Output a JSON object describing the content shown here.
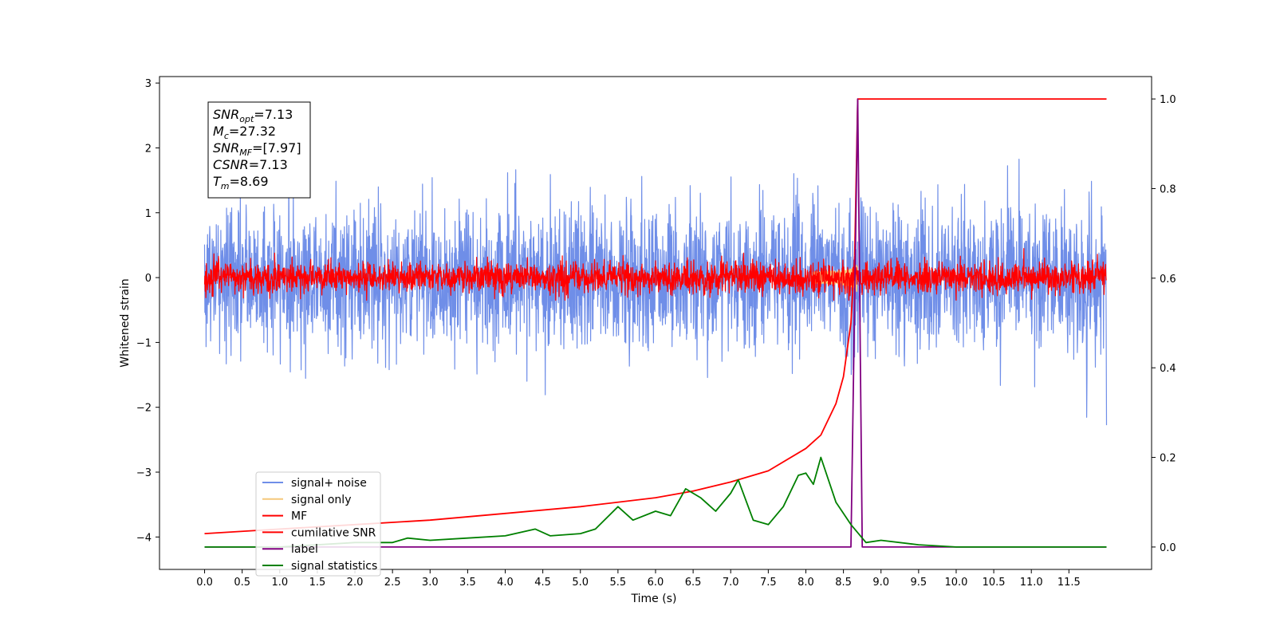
{
  "chart_data": {
    "type": "line",
    "xlabel": "Time (s)",
    "ylabel": "Whitened strain",
    "xlim": [
      -0.6,
      12.6
    ],
    "ylim": [
      -4.5,
      3.1
    ],
    "ylim_right": [
      -0.05,
      1.05
    ],
    "x_ticks": [
      "0.0",
      "0.5",
      "1.0",
      "1.5",
      "2.0",
      "2.5",
      "3.0",
      "3.5",
      "4.0",
      "4.5",
      "5.0",
      "5.5",
      "6.0",
      "6.5",
      "7.0",
      "7.5",
      "8.0",
      "8.5",
      "9.0",
      "9.5",
      "10.0",
      "10.5",
      "11.0",
      "11.5"
    ],
    "y_ticks": [
      "3",
      "2",
      "1",
      "0",
      "−1",
      "−2",
      "−3",
      "−4"
    ],
    "y_ticks_right": [
      "1.0",
      "0.8",
      "0.6",
      "0.4",
      "0.2",
      "0.0"
    ],
    "grid": false,
    "legend_placement": "lower-left",
    "info_box": [
      {
        "label": "SNR",
        "sub": "opt",
        "value": "=7.13"
      },
      {
        "label": "M",
        "sub": "c",
        "value": "=27.32"
      },
      {
        "label": "SNR",
        "sub": "MF",
        "value": "=[7.97]"
      },
      {
        "label": "CSNR",
        "sub": "",
        "value": "=7.13"
      },
      {
        "label": "T",
        "sub": "m",
        "value": "=8.69"
      }
    ],
    "series": [
      {
        "name": "signal+ noise",
        "color": "#6f8ee8",
        "axis": "left",
        "kind": "noise",
        "sigma": 0.55,
        "x_range": [
          0,
          12
        ]
      },
      {
        "name": "signal only",
        "color": "#f5c87a",
        "axis": "left",
        "kind": "chirp",
        "merger": 8.69,
        "peak": 0.35
      },
      {
        "name": "MF",
        "color": "#ff0000",
        "axis": "left",
        "kind": "noise",
        "sigma": 0.12,
        "x_range": [
          0,
          12
        ]
      },
      {
        "name": "cumilative SNR",
        "color": "#ff0000",
        "axis": "right",
        "x": [
          0.0,
          1.0,
          2.0,
          3.0,
          4.0,
          5.0,
          6.0,
          6.5,
          7.0,
          7.5,
          8.0,
          8.2,
          8.4,
          8.5,
          8.6,
          8.65,
          8.69,
          9.0,
          10.0,
          11.0,
          12.0
        ],
        "y": [
          0.03,
          0.04,
          0.05,
          0.06,
          0.075,
          0.09,
          0.11,
          0.125,
          0.145,
          0.17,
          0.22,
          0.25,
          0.32,
          0.38,
          0.5,
          0.65,
          1.0,
          1.0,
          1.0,
          1.0,
          1.0
        ]
      },
      {
        "name": "label",
        "color": "#800080",
        "axis": "right",
        "x": [
          0.0,
          8.6,
          8.69,
          8.75,
          12.0
        ],
        "y": [
          0.0,
          0.0,
          1.0,
          0.0,
          0.0
        ]
      },
      {
        "name": "signal statistics",
        "color": "#008000",
        "axis": "right",
        "x": [
          0.0,
          1.0,
          2.0,
          2.5,
          2.7,
          3.0,
          3.5,
          4.0,
          4.4,
          4.6,
          5.0,
          5.2,
          5.5,
          5.7,
          6.0,
          6.2,
          6.4,
          6.6,
          6.8,
          7.0,
          7.1,
          7.3,
          7.5,
          7.7,
          7.9,
          8.0,
          8.1,
          8.2,
          8.4,
          8.6,
          8.8,
          9.0,
          9.5,
          10.0,
          11.0,
          12.0
        ],
        "y": [
          0.0,
          0.0,
          0.01,
          0.01,
          0.02,
          0.015,
          0.02,
          0.025,
          0.04,
          0.025,
          0.03,
          0.04,
          0.09,
          0.06,
          0.08,
          0.07,
          0.13,
          0.11,
          0.08,
          0.12,
          0.15,
          0.06,
          0.05,
          0.09,
          0.16,
          0.165,
          0.14,
          0.2,
          0.1,
          0.05,
          0.01,
          0.015,
          0.005,
          0.0,
          0.0,
          0.0
        ]
      }
    ]
  }
}
